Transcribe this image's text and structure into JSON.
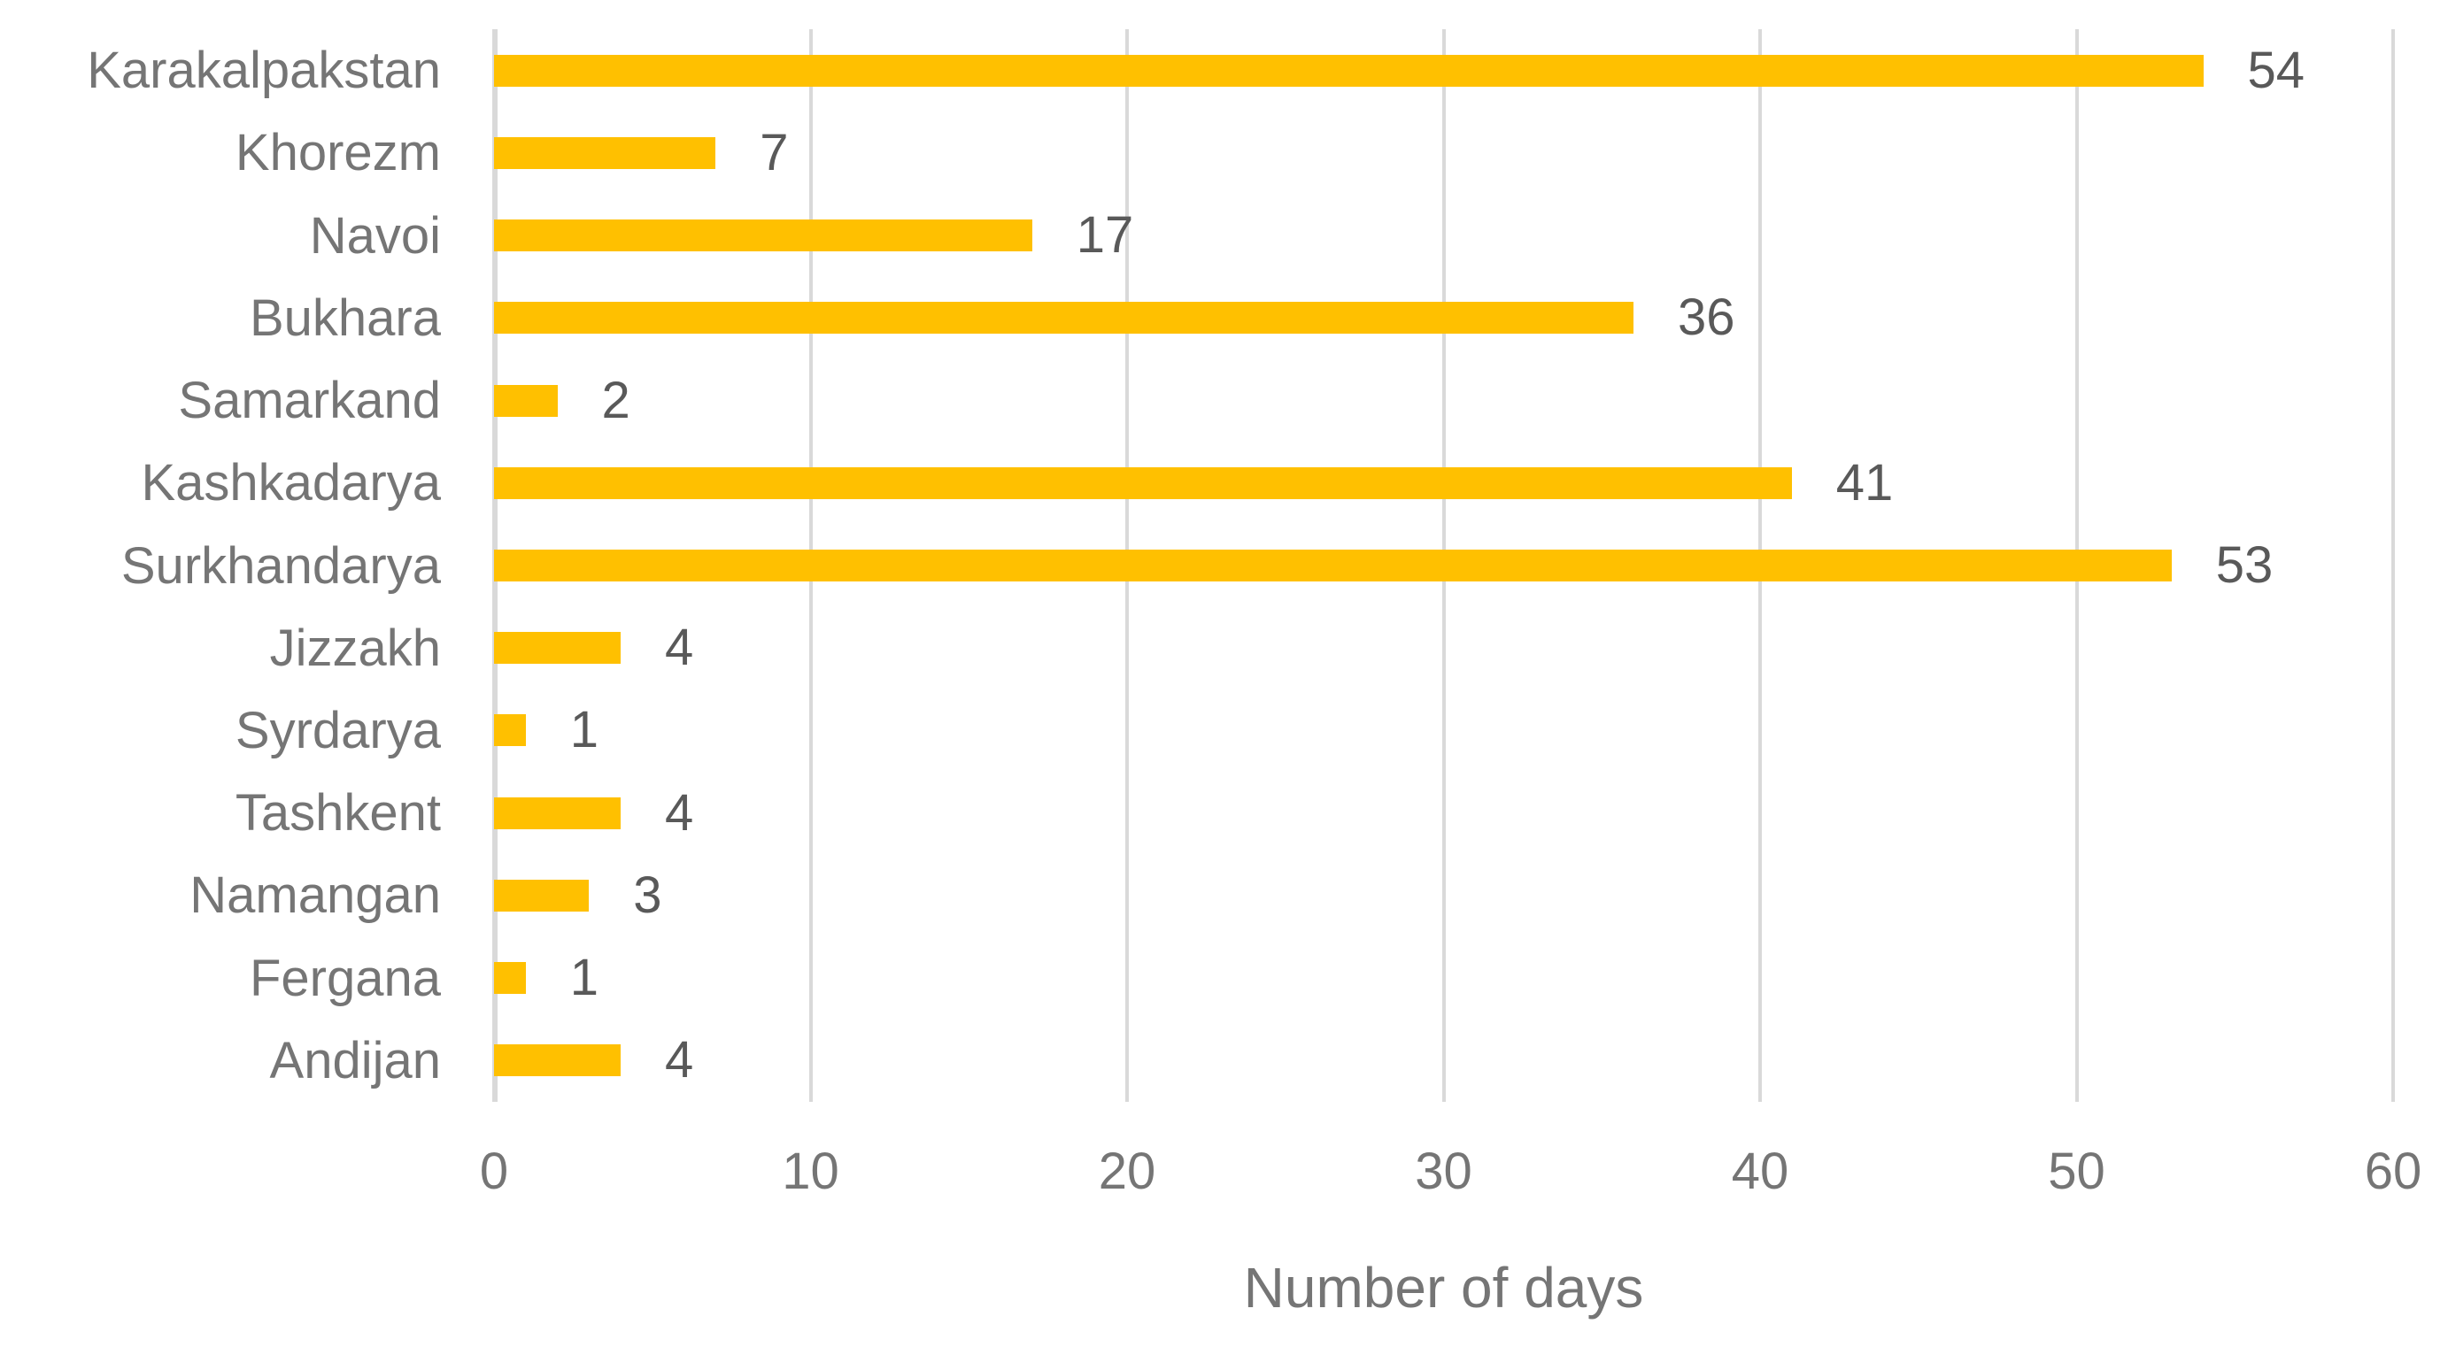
{
  "chart_data": {
    "type": "bar",
    "orientation": "horizontal",
    "categories": [
      "Karakalpakstan",
      "Khorezm",
      "Navoi",
      "Bukhara",
      "Samarkand",
      "Kashkadarya",
      "Surkhandarya",
      "Jizzakh",
      "Syrdarya",
      "Tashkent",
      "Namangan",
      "Fergana",
      "Andijan"
    ],
    "values": [
      54,
      7,
      17,
      36,
      2,
      41,
      53,
      4,
      1,
      4,
      3,
      1,
      4
    ],
    "title": "",
    "xlabel": "Number of days",
    "ylabel": "",
    "xlim": [
      0,
      60
    ],
    "xticks": [
      0,
      10,
      20,
      30,
      40,
      50,
      60
    ],
    "grid": "vertical-gridlines",
    "legend": "none",
    "value_labels_shown": true,
    "colors": {
      "bar": "#FFC000",
      "value_label": "#595959",
      "axis_text": "#757575",
      "gridline": "#D9D9D9",
      "background": "#FFFFFF"
    }
  }
}
